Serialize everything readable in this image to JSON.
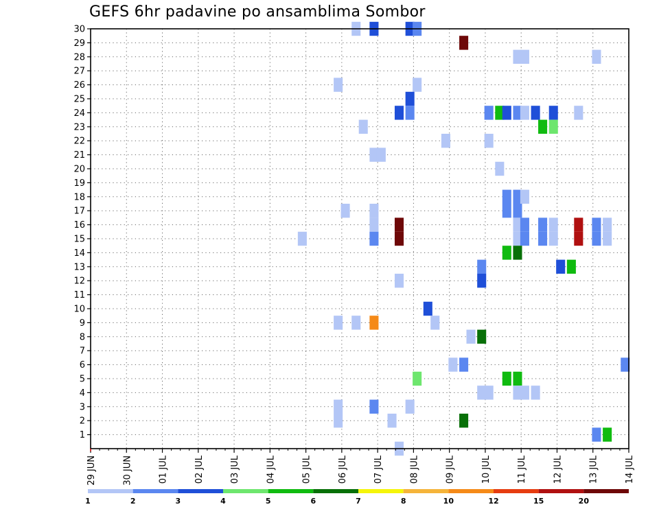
{
  "chart_data": {
    "type": "heatmap",
    "title": "GEFS 6hr padavine po ansamblima Sombor",
    "x_tick_labels": [
      "29 JUN",
      "30 JUN",
      "01 JUL",
      "02 JUL",
      "03 JUL",
      "04 JUL",
      "05 JUL",
      "06 JUL",
      "07 JUL",
      "08 JUL",
      "09 JUL",
      "10 JUL",
      "11 JUL",
      "12 JUL",
      "13 JUL",
      "14 JUL"
    ],
    "x_range_days": [
      0,
      15
    ],
    "steps_per_day": 4,
    "y_tick_labels": [
      "1",
      "2",
      "3",
      "4",
      "5",
      "6",
      "7",
      "8",
      "9",
      "10",
      "11",
      "12",
      "13",
      "14",
      "15",
      "16",
      "17",
      "18",
      "19",
      "20",
      "21",
      "22",
      "23",
      "24",
      "25",
      "26",
      "27",
      "28",
      "29",
      "30"
    ],
    "y_range": [
      0,
      30
    ],
    "grid": "dotted",
    "legend": {
      "placement": "bottom",
      "labels": [
        "1",
        "2",
        "3",
        "4",
        "5",
        "6",
        "7",
        "8",
        "10",
        "12",
        "15",
        "20"
      ],
      "colors": [
        "#b3c6f6",
        "#5b87f0",
        "#1f4fd8",
        "#6ee66e",
        "#10bb10",
        "#087008",
        "#f5f50a",
        "#f5b43a",
        "#f58a18",
        "#e63c10",
        "#b01010",
        "#6e0808"
      ]
    },
    "cells": [
      {
        "x": 7.4,
        "y": 30,
        "v": 1
      },
      {
        "x": 7.9,
        "y": 30,
        "v": 3
      },
      {
        "x": 8.9,
        "y": 30,
        "v": 3
      },
      {
        "x": 9.1,
        "y": 30,
        "v": 2
      },
      {
        "x": 10.4,
        "y": 29,
        "v": 20
      },
      {
        "x": 11.9,
        "y": 28,
        "v": 1
      },
      {
        "x": 12.1,
        "y": 28,
        "v": 1
      },
      {
        "x": 14.1,
        "y": 28,
        "v": 1
      },
      {
        "x": 6.9,
        "y": 26,
        "v": 1
      },
      {
        "x": 9.1,
        "y": 26,
        "v": 1
      },
      {
        "x": 8.9,
        "y": 25,
        "v": 3
      },
      {
        "x": 8.6,
        "y": 24,
        "v": 3
      },
      {
        "x": 8.9,
        "y": 24,
        "v": 2
      },
      {
        "x": 11.1,
        "y": 24,
        "v": 2
      },
      {
        "x": 11.4,
        "y": 24,
        "v": 5
      },
      {
        "x": 11.6,
        "y": 24,
        "v": 3
      },
      {
        "x": 11.9,
        "y": 24,
        "v": 2
      },
      {
        "x": 12.1,
        "y": 24,
        "v": 1
      },
      {
        "x": 12.4,
        "y": 24,
        "v": 3
      },
      {
        "x": 12.9,
        "y": 24,
        "v": 3
      },
      {
        "x": 13.6,
        "y": 24,
        "v": 1
      },
      {
        "x": 7.6,
        "y": 23,
        "v": 1
      },
      {
        "x": 12.6,
        "y": 23,
        "v": 5
      },
      {
        "x": 12.9,
        "y": 23,
        "v": 4
      },
      {
        "x": 9.9,
        "y": 22,
        "v": 1
      },
      {
        "x": 11.1,
        "y": 22,
        "v": 1
      },
      {
        "x": 7.9,
        "y": 21,
        "v": 1
      },
      {
        "x": 8.1,
        "y": 21,
        "v": 1
      },
      {
        "x": 11.4,
        "y": 20,
        "v": 1
      },
      {
        "x": 11.6,
        "y": 18,
        "v": 2
      },
      {
        "x": 11.9,
        "y": 18,
        "v": 2
      },
      {
        "x": 12.1,
        "y": 18,
        "v": 1
      },
      {
        "x": 11.6,
        "y": 17,
        "v": 2
      },
      {
        "x": 11.9,
        "y": 17,
        "v": 2
      },
      {
        "x": 7.1,
        "y": 17,
        "v": 1
      },
      {
        "x": 7.9,
        "y": 17,
        "v": 1
      },
      {
        "x": 7.9,
        "y": 16,
        "v": 1
      },
      {
        "x": 11.9,
        "y": 16,
        "v": 1
      },
      {
        "x": 12.1,
        "y": 16,
        "v": 2
      },
      {
        "x": 12.6,
        "y": 16,
        "v": 2
      },
      {
        "x": 12.9,
        "y": 16,
        "v": 1
      },
      {
        "x": 13.6,
        "y": 16,
        "v": 15
      },
      {
        "x": 14.1,
        "y": 16,
        "v": 2
      },
      {
        "x": 14.4,
        "y": 16,
        "v": 1
      },
      {
        "x": 8.6,
        "y": 16,
        "v": 20
      },
      {
        "x": 5.9,
        "y": 15,
        "v": 1
      },
      {
        "x": 7.9,
        "y": 15,
        "v": 2
      },
      {
        "x": 8.6,
        "y": 15,
        "v": 20
      },
      {
        "x": 11.9,
        "y": 15,
        "v": 1
      },
      {
        "x": 12.1,
        "y": 15,
        "v": 2
      },
      {
        "x": 12.6,
        "y": 15,
        "v": 2
      },
      {
        "x": 12.9,
        "y": 15,
        "v": 1
      },
      {
        "x": 13.6,
        "y": 15,
        "v": 15
      },
      {
        "x": 14.1,
        "y": 15,
        "v": 2
      },
      {
        "x": 14.4,
        "y": 15,
        "v": 1
      },
      {
        "x": 11.6,
        "y": 14,
        "v": 5
      },
      {
        "x": 11.9,
        "y": 14,
        "v": 6
      },
      {
        "x": 10.9,
        "y": 13,
        "v": 2
      },
      {
        "x": 13.1,
        "y": 13,
        "v": 3
      },
      {
        "x": 13.4,
        "y": 13,
        "v": 5
      },
      {
        "x": 8.6,
        "y": 12,
        "v": 1
      },
      {
        "x": 10.9,
        "y": 12,
        "v": 3
      },
      {
        "x": 9.4,
        "y": 10,
        "v": 3
      },
      {
        "x": 6.9,
        "y": 9,
        "v": 1
      },
      {
        "x": 7.4,
        "y": 9,
        "v": 1
      },
      {
        "x": 7.9,
        "y": 9,
        "v": 10
      },
      {
        "x": 9.6,
        "y": 9,
        "v": 1
      },
      {
        "x": 10.6,
        "y": 8,
        "v": 1
      },
      {
        "x": 10.9,
        "y": 8,
        "v": 6
      },
      {
        "x": 10.1,
        "y": 6,
        "v": 1
      },
      {
        "x": 10.4,
        "y": 6,
        "v": 2
      },
      {
        "x": 14.9,
        "y": 6,
        "v": 2
      },
      {
        "x": 9.1,
        "y": 5,
        "v": 4
      },
      {
        "x": 11.6,
        "y": 5,
        "v": 5
      },
      {
        "x": 11.9,
        "y": 5,
        "v": 5
      },
      {
        "x": 10.9,
        "y": 4,
        "v": 1
      },
      {
        "x": 11.1,
        "y": 4,
        "v": 1
      },
      {
        "x": 11.9,
        "y": 4,
        "v": 1
      },
      {
        "x": 12.1,
        "y": 4,
        "v": 1
      },
      {
        "x": 12.4,
        "y": 4,
        "v": 1
      },
      {
        "x": 6.9,
        "y": 3,
        "v": 1
      },
      {
        "x": 7.9,
        "y": 3,
        "v": 2
      },
      {
        "x": 8.9,
        "y": 3,
        "v": 1
      },
      {
        "x": 6.9,
        "y": 2,
        "v": 1
      },
      {
        "x": 8.4,
        "y": 2,
        "v": 1
      },
      {
        "x": 10.4,
        "y": 2,
        "v": 6
      },
      {
        "x": 14.1,
        "y": 1,
        "v": 2
      },
      {
        "x": 14.4,
        "y": 1,
        "v": 5
      },
      {
        "x": 8.6,
        "y": 0,
        "v": 1
      }
    ]
  }
}
